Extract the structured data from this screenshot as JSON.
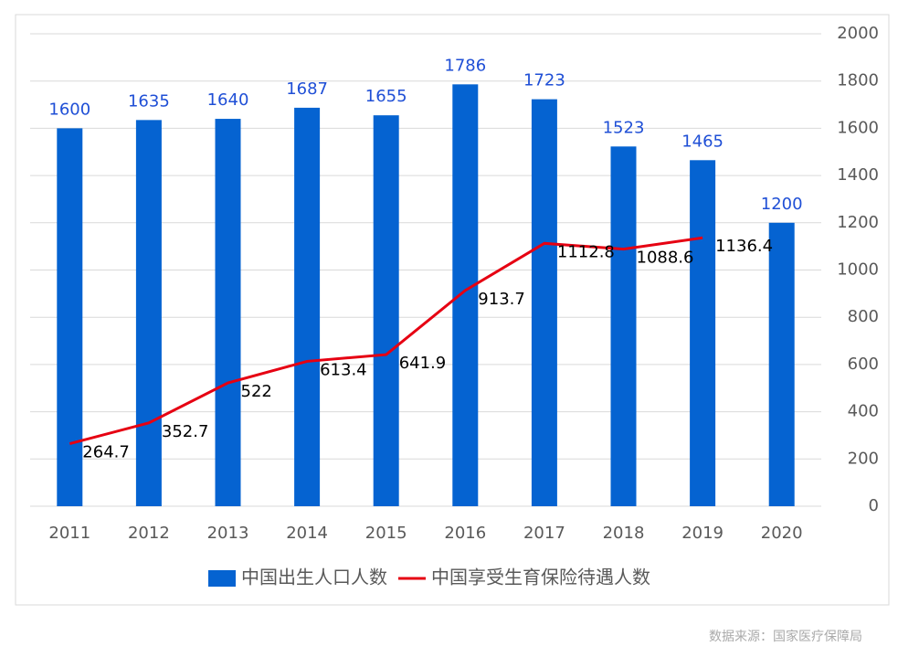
{
  "chart_data": {
    "type": "bar",
    "categories": [
      "2011",
      "2012",
      "2013",
      "2014",
      "2015",
      "2016",
      "2017",
      "2018",
      "2019",
      "2020"
    ],
    "series": [
      {
        "name": "中国出生人口人数",
        "type": "bar",
        "color": "#0563d1",
        "label_color": "#1f4fd6",
        "values": [
          1600,
          1635,
          1640,
          1687,
          1655,
          1786,
          1723,
          1523,
          1465,
          1200
        ]
      },
      {
        "name": "中国享受生育保险待遇人数",
        "type": "line",
        "color": "#e60012",
        "label_color": "#000000",
        "values": [
          264.7,
          352.7,
          522,
          613.4,
          641.9,
          913.7,
          1112.8,
          1088.6,
          1136.4,
          null
        ]
      }
    ],
    "ylim": [
      0,
      2000
    ],
    "yticks": [
      0,
      200,
      400,
      600,
      800,
      1000,
      1200,
      1400,
      1600,
      1800,
      2000
    ],
    "axis_side": "right",
    "grid": true,
    "source": "数据来源：国家医疗保障局"
  }
}
